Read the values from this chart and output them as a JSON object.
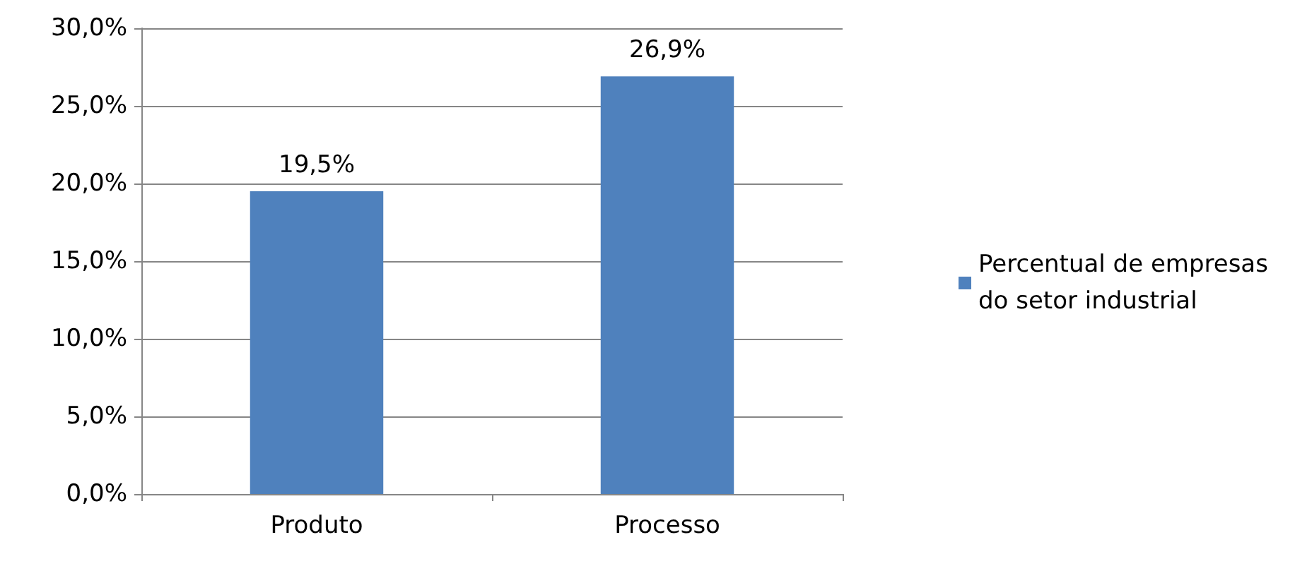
{
  "chart_data": {
    "type": "bar",
    "categories": [
      "Produto",
      "Processo"
    ],
    "series": [
      {
        "name": "Percentual de empresas do setor industrial",
        "color": "#4f81bd",
        "values": [
          19.5,
          26.9
        ],
        "value_labels": [
          "19,5%",
          "26,9%"
        ]
      }
    ],
    "ylim": [
      0,
      30
    ],
    "yticks": [
      {
        "value": 0,
        "label": "0,0%"
      },
      {
        "value": 5,
        "label": "5,0%"
      },
      {
        "value": 10,
        "label": "10,0%"
      },
      {
        "value": 15,
        "label": "15,0%"
      },
      {
        "value": 20,
        "label": "20,0%"
      },
      {
        "value": 25,
        "label": "25,0%"
      },
      {
        "value": 30,
        "label": "30,0%"
      }
    ],
    "grid": "y",
    "legend": "right"
  }
}
